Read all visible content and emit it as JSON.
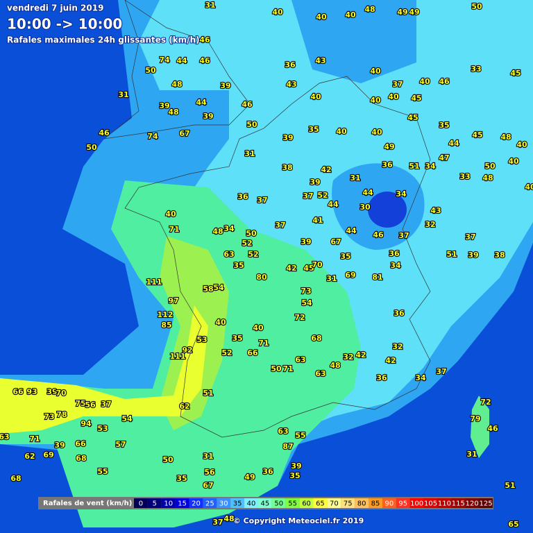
{
  "header": {
    "date": "vendredi 7 juin 2019",
    "period": "10:00 -> 10:00",
    "subtitle": "Rafales maximales 24h glissantes (km/h)"
  },
  "legend": {
    "title": "Rafales de vent (km/h)",
    "levels": [
      {
        "value": 0,
        "color": "#00005a"
      },
      {
        "value": 5,
        "color": "#00007a"
      },
      {
        "value": 10,
        "color": "#0000a8"
      },
      {
        "value": 15,
        "color": "#0000dd"
      },
      {
        "value": 20,
        "color": "#1030ff"
      },
      {
        "value": 25,
        "color": "#2060ff"
      },
      {
        "value": 30,
        "color": "#3a90ff"
      },
      {
        "value": 35,
        "color": "#4fc0ff"
      },
      {
        "value": 40,
        "color": "#7ff0ff"
      },
      {
        "value": 45,
        "color": "#80ffd0"
      },
      {
        "value": 50,
        "color": "#70ff90"
      },
      {
        "value": 55,
        "color": "#80ff40"
      },
      {
        "value": 60,
        "color": "#c0ff40"
      },
      {
        "value": 65,
        "color": "#ffff40"
      },
      {
        "value": 70,
        "color": "#ffff90"
      },
      {
        "value": 75,
        "color": "#ffe080"
      },
      {
        "value": 80,
        "color": "#ffc060"
      },
      {
        "value": 85,
        "color": "#ff9a20"
      },
      {
        "value": 90,
        "color": "#ff6020"
      },
      {
        "value": 95,
        "color": "#ff3020"
      },
      {
        "value": 100,
        "color": "#ff0000"
      },
      {
        "value": 105,
        "color": "#e00000"
      },
      {
        "value": 110,
        "color": "#c00000"
      },
      {
        "value": 115,
        "color": "#a00000"
      },
      {
        "value": 120,
        "color": "#800000"
      },
      {
        "value": 125,
        "color": "#600000"
      }
    ]
  },
  "stations": {
    "values": [
      31,
      40,
      40,
      40,
      48,
      49,
      49,
      50,
      46,
      46,
      74,
      44,
      50,
      48,
      39,
      31,
      39,
      48,
      44,
      46,
      39,
      46,
      50,
      74,
      67,
      50,
      31,
      36,
      43,
      43,
      40,
      40,
      37,
      40,
      46,
      33,
      45,
      40,
      40,
      45,
      45,
      35,
      45,
      48,
      40,
      39,
      35,
      40,
      40,
      49,
      44,
      50,
      40,
      38,
      42,
      31,
      36,
      51,
      34,
      47,
      33,
      48,
      40,
      39,
      36,
      37,
      37,
      52,
      44,
      44,
      30,
      34,
      43,
      40,
      71,
      48,
      34,
      50,
      37,
      41,
      44,
      46,
      37,
      32,
      37,
      39,
      67,
      52,
      63,
      52,
      35,
      42,
      45,
      80,
      70,
      35,
      34,
      36,
      51,
      39,
      38,
      111,
      58,
      54,
      40,
      53,
      35,
      40,
      71,
      52,
      66,
      50,
      71,
      63,
      63,
      48,
      32,
      42,
      42,
      73,
      54,
      72,
      68,
      69,
      31,
      81,
      36,
      32,
      36,
      34,
      37,
      72,
      79,
      46,
      31,
      66,
      93,
      39,
      70,
      75,
      56,
      37,
      73,
      78,
      94,
      53,
      71,
      63,
      62,
      69,
      39,
      66,
      68,
      57,
      55,
      68,
      54,
      62,
      51,
      92,
      111,
      112,
      97,
      85,
      31,
      56,
      67,
      35,
      50,
      49,
      36,
      39,
      35,
      63,
      55,
      87,
      37,
      48,
      65,
      51
    ]
  },
  "footer": {
    "copyright": "© Copyright Meteociel.fr 2019"
  }
}
